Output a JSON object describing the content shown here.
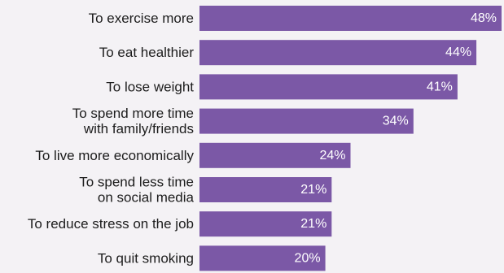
{
  "chart_data": {
    "type": "bar",
    "orientation": "horizontal",
    "categories": [
      "To exercise more",
      "To eat healthier",
      "To lose weight",
      "To spend more time with family/friends",
      "To live more economically",
      "To spend less time on social media",
      "To reduce stress on the job",
      "To quit smoking"
    ],
    "category_lines": [
      [
        "To exercise more"
      ],
      [
        "To eat healthier"
      ],
      [
        "To lose weight"
      ],
      [
        "To spend more time",
        "with family/friends"
      ],
      [
        "To live more economically"
      ],
      [
        "To spend less time",
        "on social media"
      ],
      [
        "To reduce stress on the job"
      ],
      [
        "To quit smoking"
      ]
    ],
    "values": [
      48,
      44,
      41,
      34,
      24,
      21,
      21,
      20
    ],
    "value_labels": [
      "48%",
      "44%",
      "41%",
      "34%",
      "24%",
      "21%",
      "21%",
      "20%"
    ],
    "unit": "%",
    "xlim": [
      0,
      48
    ],
    "bar_color": "#7b58a6",
    "grid": false,
    "legend": "none"
  }
}
